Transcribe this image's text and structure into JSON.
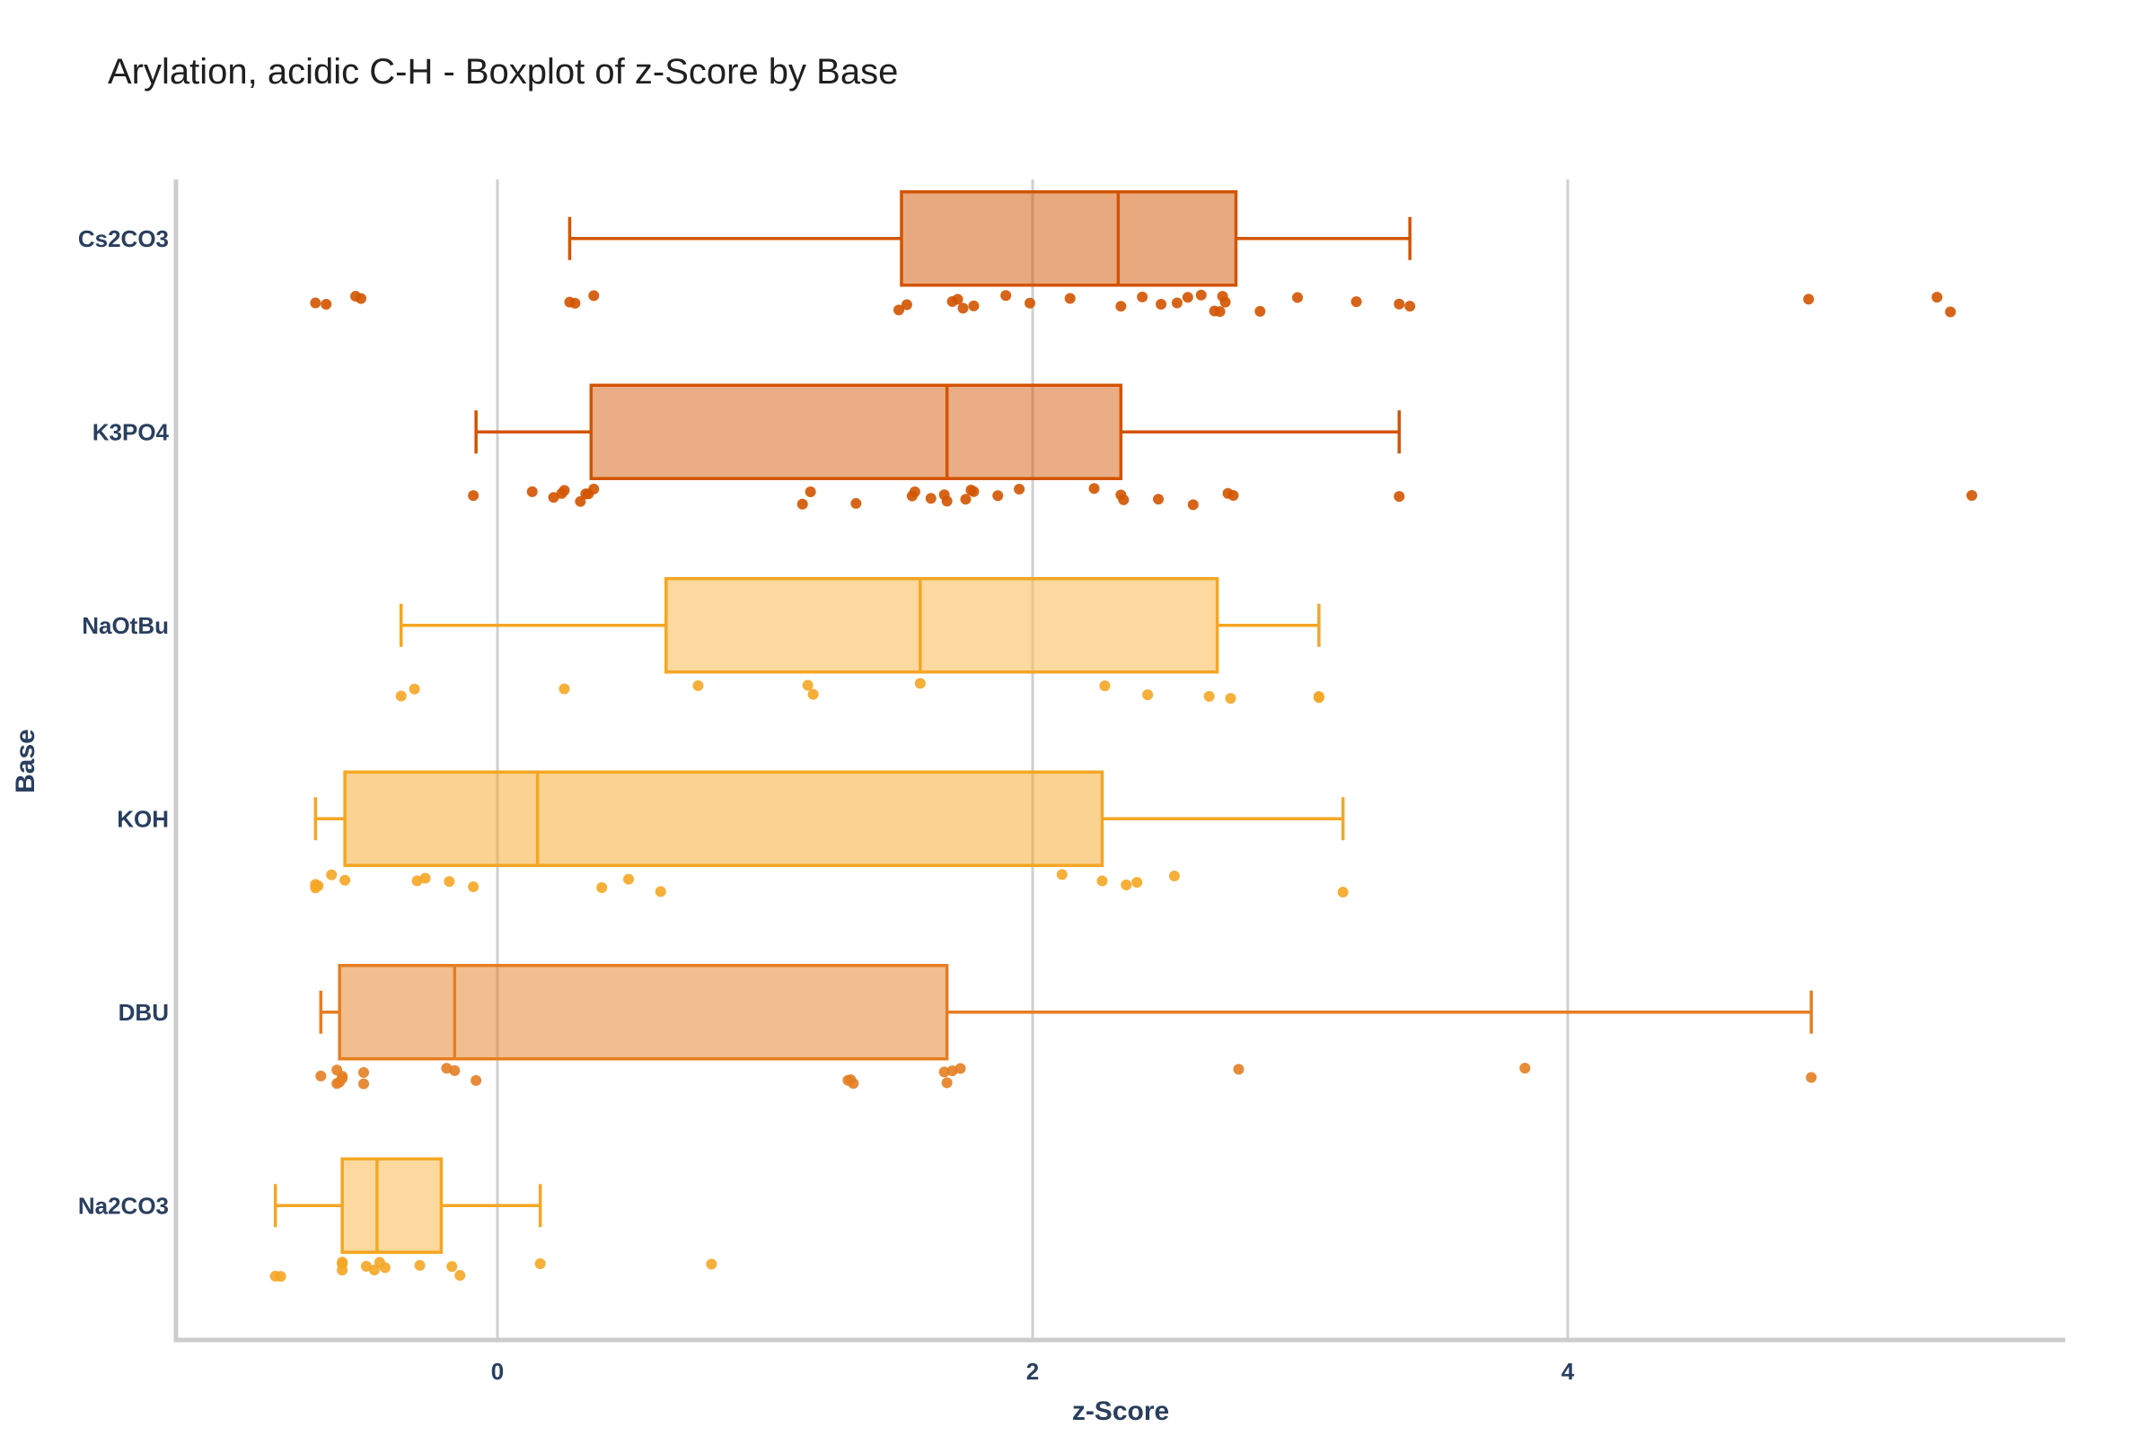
{
  "chart_data": {
    "type": "box",
    "title": "Arylation, acidic C-H - Boxplot of z-Score by Base",
    "xlabel": "z-Score",
    "ylabel": "Base",
    "orientation": "horizontal",
    "xlim": [
      -1.2,
      5.85
    ],
    "xticks": [
      0,
      2,
      4
    ],
    "grid": "vertical",
    "boxpoints": "all",
    "series": [
      {
        "name": "Cs2CO3",
        "color": "#d35400",
        "whisker_low": 0.27,
        "q1": 1.51,
        "median": 2.32,
        "q3": 2.76,
        "whisker_high": 3.41,
        "points": [
          -0.68,
          -0.64,
          -0.53,
          -0.51,
          0.27,
          0.29,
          0.36,
          1.5,
          1.53,
          1.7,
          1.72,
          1.74,
          1.78,
          1.9,
          1.99,
          2.14,
          2.33,
          2.41,
          2.48,
          2.54,
          2.58,
          2.63,
          2.68,
          2.7,
          2.71,
          2.72,
          2.85,
          2.99,
          3.21,
          3.37,
          3.41,
          4.9,
          5.38,
          5.43
        ]
      },
      {
        "name": "K3PO4",
        "color": "#d35400",
        "whisker_low": -0.08,
        "q1": 0.35,
        "median": 1.68,
        "q3": 2.33,
        "whisker_high": 3.37,
        "points": [
          -0.09,
          0.13,
          0.21,
          0.24,
          0.25,
          0.31,
          0.33,
          0.34,
          0.36,
          1.14,
          1.17,
          1.34,
          1.55,
          1.56,
          1.62,
          1.67,
          1.68,
          1.75,
          1.77,
          1.78,
          1.87,
          1.95,
          2.23,
          2.33,
          2.34,
          2.47,
          2.6,
          2.73,
          2.75,
          3.37,
          5.51
        ]
      },
      {
        "name": "NaOtBu",
        "color": "#f5a623",
        "whisker_low": -0.36,
        "q1": 0.63,
        "median": 1.58,
        "q3": 2.69,
        "whisker_high": 3.07,
        "points": [
          -0.36,
          -0.31,
          0.25,
          0.75,
          1.16,
          1.18,
          1.58,
          2.27,
          2.43,
          2.66,
          2.74,
          3.07,
          3.07
        ]
      },
      {
        "name": "KOH",
        "color": "#f5a623",
        "whisker_low": -0.68,
        "q1": -0.57,
        "median": 0.15,
        "q3": 2.26,
        "whisker_high": 3.16,
        "points": [
          -0.68,
          -0.67,
          -0.68,
          -0.62,
          -0.57,
          -0.3,
          -0.27,
          -0.18,
          -0.09,
          0.39,
          0.49,
          0.61,
          2.11,
          2.26,
          2.35,
          2.39,
          2.53,
          3.16
        ]
      },
      {
        "name": "DBU",
        "color": "#e67e22",
        "whisker_low": -0.66,
        "q1": -0.59,
        "median": -0.16,
        "q3": 1.68,
        "whisker_high": 4.91,
        "points": [
          -0.66,
          -0.6,
          -0.58,
          -0.58,
          -0.6,
          -0.59,
          -0.5,
          -0.5,
          -0.19,
          -0.16,
          -0.08,
          1.31,
          1.32,
          1.33,
          1.67,
          1.68,
          1.7,
          1.73,
          2.77,
          3.84,
          4.91
        ]
      },
      {
        "name": "Na2CO3",
        "color": "#f5a623",
        "whisker_low": -0.83,
        "q1": -0.58,
        "median": -0.45,
        "q3": -0.21,
        "whisker_high": 0.16,
        "points": [
          -0.83,
          -0.81,
          -0.58,
          -0.58,
          -0.58,
          -0.49,
          -0.46,
          -0.44,
          -0.42,
          -0.29,
          -0.17,
          -0.14,
          0.16,
          0.8
        ]
      }
    ]
  }
}
